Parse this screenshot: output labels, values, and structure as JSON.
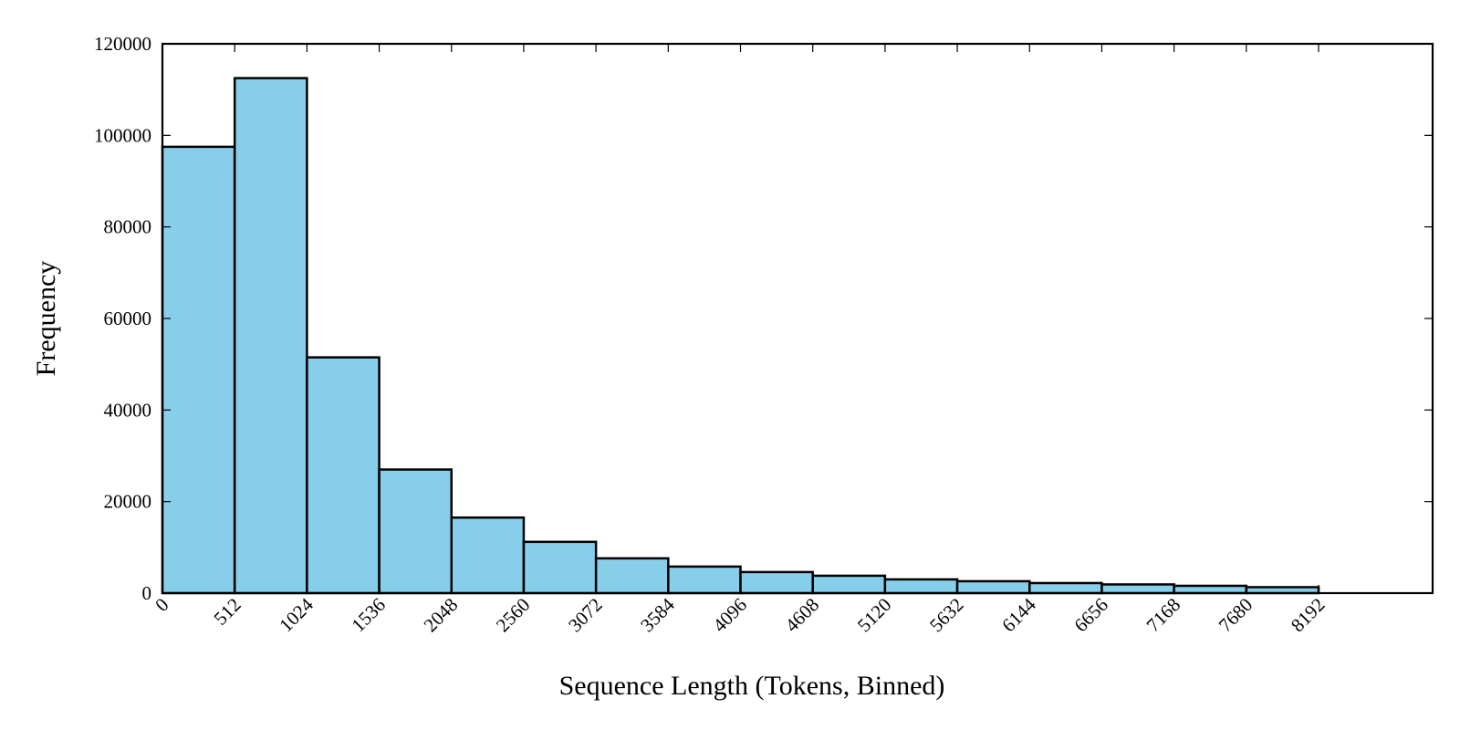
{
  "chart_data": {
    "type": "bar",
    "title": "",
    "xlabel": "Sequence Length (Tokens, Binned)",
    "ylabel": "Frequency",
    "bin_edges": [
      0,
      512,
      1024,
      1536,
      2048,
      2560,
      3072,
      3584,
      4096,
      4608,
      5120,
      5632,
      6144,
      6656,
      7168,
      7680,
      8192
    ],
    "x_tick_labels": [
      "0",
      "512",
      "1024",
      "1536",
      "2048",
      "2560",
      "3072",
      "3584",
      "4096",
      "4608",
      "5120",
      "5632",
      "6144",
      "6656",
      "7168",
      "7680",
      "8192"
    ],
    "y_tick_values": [
      0,
      20000,
      40000,
      60000,
      80000,
      100000,
      120000
    ],
    "y_tick_labels": [
      "0",
      "20000",
      "40000",
      "60000",
      "80000",
      "100000",
      "120000"
    ],
    "values": [
      97500,
      112500,
      51500,
      27000,
      16500,
      11200,
      7600,
      5800,
      4600,
      3800,
      3000,
      2600,
      2200,
      1900,
      1600,
      1300
    ],
    "xlim": [
      0,
      9000
    ],
    "ylim": [
      0,
      120000
    ],
    "grid": false,
    "legend": "none",
    "bar_color": "#87CEEB",
    "edge_color": "#000000"
  }
}
